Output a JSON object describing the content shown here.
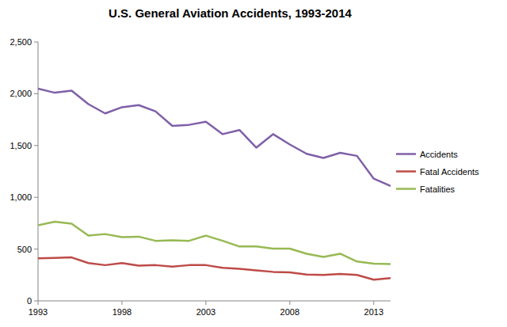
{
  "chart_data": {
    "type": "line",
    "title": "U.S. General Aviation Accidents, 1993-2014",
    "x": [
      1993,
      1994,
      1995,
      1996,
      1997,
      1998,
      1999,
      2000,
      2001,
      2002,
      2003,
      2004,
      2005,
      2006,
      2007,
      2008,
      2009,
      2010,
      2011,
      2012,
      2013,
      2014
    ],
    "series": [
      {
        "name": "Accidents",
        "color": "#7f60a8",
        "values": [
          2050,
          2010,
          2030,
          1900,
          1810,
          1870,
          1890,
          1830,
          1690,
          1700,
          1730,
          1610,
          1650,
          1480,
          1610,
          1510,
          1420,
          1380,
          1430,
          1400,
          1180,
          1110
        ]
      },
      {
        "name": "Fatal Accidents",
        "color": "#be4b48",
        "values": [
          410,
          415,
          420,
          365,
          345,
          365,
          340,
          345,
          330,
          345,
          345,
          320,
          310,
          295,
          280,
          275,
          255,
          250,
          260,
          250,
          205,
          220
        ]
      },
      {
        "name": "Fatalities",
        "color": "#98b954",
        "values": [
          730,
          765,
          745,
          630,
          645,
          615,
          620,
          580,
          585,
          580,
          630,
          580,
          525,
          525,
          505,
          505,
          455,
          425,
          455,
          380,
          360,
          355
        ]
      }
    ],
    "xlim": [
      1993,
      2014
    ],
    "xticks": [
      1993,
      1998,
      2003,
      2008,
      2013
    ],
    "ylim": [
      0,
      2500
    ],
    "yticks": [
      0,
      500,
      {
        "value": 1000,
        "label": "1,000"
      },
      {
        "value": 1500,
        "label": "1,500"
      },
      {
        "value": 2000,
        "label": "2,000"
      },
      {
        "value": 2500,
        "label": "2,500"
      }
    ],
    "grid": false,
    "legend": "right"
  }
}
